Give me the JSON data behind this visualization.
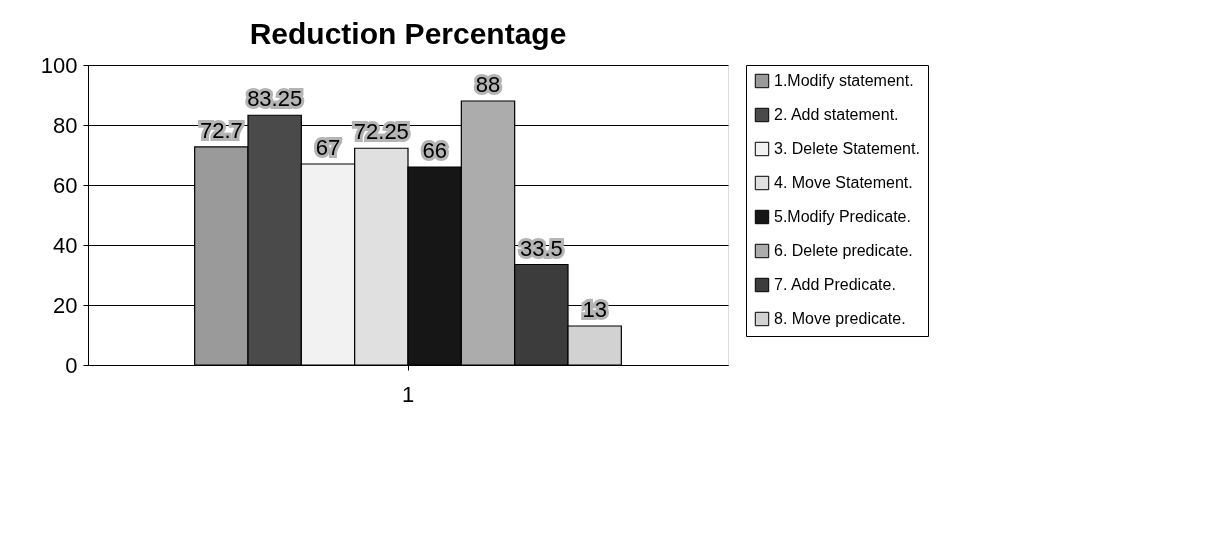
{
  "chart_data": {
    "type": "bar",
    "title": "Reduction Percentage",
    "categories": [
      "1"
    ],
    "series": [
      {
        "name": "1.Modify statement.",
        "color": "#9a9a9a",
        "values": [
          72.7
        ]
      },
      {
        "name": "2. Add statement.",
        "color": "#4a4a4a",
        "values": [
          83.25
        ]
      },
      {
        "name": "3. Delete Statement.",
        "color": "#f2f2f2",
        "values": [
          67
        ]
      },
      {
        "name": "4. Move Statement.",
        "color": "#e0e0e0",
        "values": [
          72.25
        ]
      },
      {
        "name": "5.Modify Predicate.",
        "color": "#161616",
        "values": [
          66
        ]
      },
      {
        "name": "6. Delete predicate.",
        "color": "#acacac",
        "values": [
          88
        ]
      },
      {
        "name": "7. Add Predicate.",
        "color": "#3c3c3c",
        "values": [
          33.5
        ]
      },
      {
        "name": "8. Move predicate.",
        "color": "#d2d2d2",
        "values": [
          13
        ]
      }
    ],
    "ylim": [
      0,
      100
    ],
    "yticks": [
      0,
      20,
      40,
      60,
      80,
      100
    ],
    "grid": "y",
    "legend": "right",
    "data_labels": true
  }
}
